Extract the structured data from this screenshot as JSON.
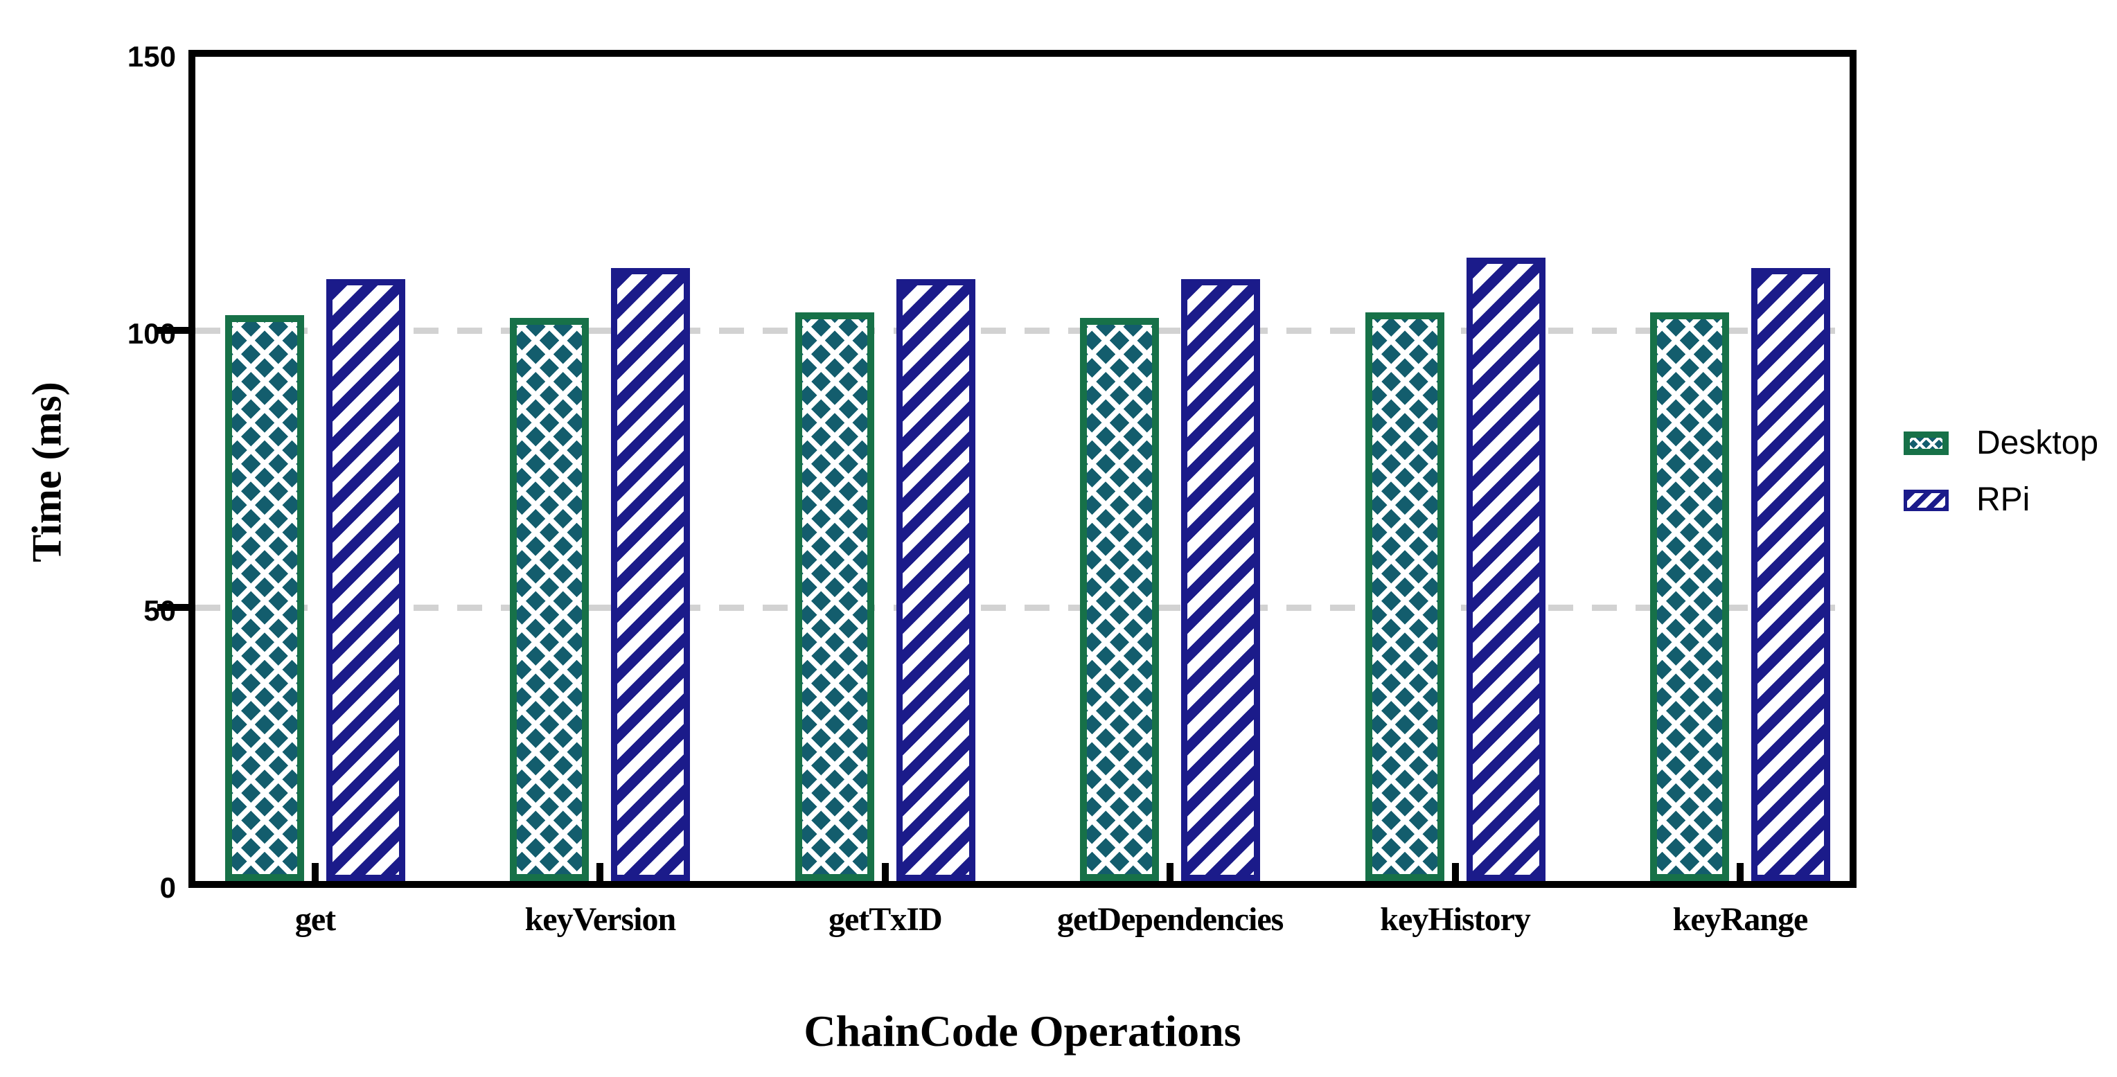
{
  "chart_data": {
    "type": "bar",
    "categories": [
      "get",
      "keyVersion",
      "getTxID",
      "getDependencies",
      "keyHistory",
      "keyRange"
    ],
    "series": [
      {
        "name": "Desktop",
        "values": [
          103,
          102.5,
          103.5,
          102.5,
          103.5,
          103.5
        ]
      },
      {
        "name": "RPi",
        "values": [
          109.5,
          111.5,
          109.5,
          109.5,
          113.5,
          111.5
        ]
      }
    ],
    "title": "",
    "xlabel": "ChainCode Operations",
    "ylabel": "Time (ms)",
    "ylim": [
      0,
      150
    ],
    "yticks": [
      0,
      50,
      100,
      150
    ],
    "gridlines_at": [
      50,
      100
    ],
    "grid": "dashed-horizontal",
    "legend_position": "right-outside"
  },
  "styles": {
    "desktop_border_color": "#177148",
    "desktop_pattern_color": "#135d6d",
    "rpi_color": "#1b1b8a",
    "gridline_color": "#d2d2d2",
    "axis_color": "#000000",
    "background_color": "#ffffff"
  }
}
